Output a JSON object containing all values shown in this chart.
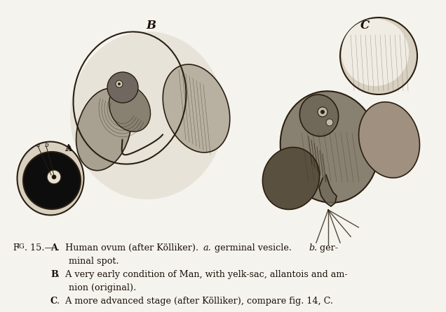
{
  "fig_width": 6.36,
  "fig_height": 4.46,
  "dpi": 100,
  "bg_color": "#f5f3ee",
  "caption_lines": [
    "Fᴏɢ. 15.—A.  Human ovum (after Kölliker).   a. germinal vesicle.   b. ger-",
    "             minal spot.",
    "         B.  A very early condition of Man, with yelk-sac, allantois and am-",
    "             nion (original).",
    "         C.  A more advanced stage (after Kölliker), compare fig. 14, C."
  ],
  "label_A": "A",
  "label_B": "B",
  "label_C": "C",
  "label_a": "a",
  "label_b": "b",
  "text_color": "#1a1008",
  "line_color": "#2a1f10"
}
